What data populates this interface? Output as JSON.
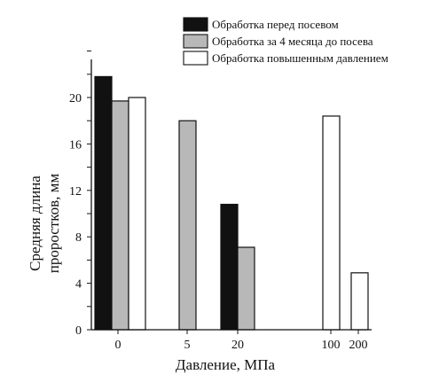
{
  "chart_data": {
    "type": "bar",
    "categories": [
      "0",
      "5",
      "20",
      "100",
      "200"
    ],
    "xlabel": "Давление, МПа",
    "ylabel_lines": [
      "Средняя длина",
      "проростков, мм"
    ],
    "ylim": [
      0,
      24
    ],
    "yticks": [
      0,
      4,
      8,
      12,
      16,
      20
    ],
    "grid": false,
    "legend_position": "top-right",
    "series": [
      {
        "name": "Обработка перед посевом",
        "color": "#111111",
        "values": [
          21.8,
          null,
          10.8,
          null,
          null
        ]
      },
      {
        "name": "Обработка за 4 месяца до посева",
        "color": "#b8b8b8",
        "values": [
          19.7,
          18.0,
          7.1,
          null,
          null
        ]
      },
      {
        "name": "Обработка повышенным давлением",
        "color": "#ffffff",
        "values": [
          20.0,
          null,
          null,
          18.4,
          4.9
        ]
      }
    ]
  }
}
